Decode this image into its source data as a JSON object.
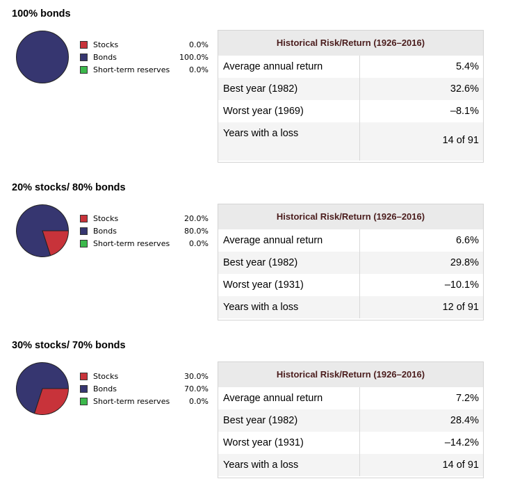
{
  "legend_colors": {
    "stocks": "#c8333a",
    "bonds": "#363670",
    "reserves": "#3cb84c"
  },
  "sections": [
    {
      "title": "100% bonds",
      "legend": [
        {
          "label": "Stocks",
          "value": "0.0%"
        },
        {
          "label": "Bonds",
          "value": "100.0%"
        },
        {
          "label": "Short-term reserves",
          "value": "0.0%"
        }
      ],
      "table": {
        "header": "Historical Risk/Return (1926–2016)",
        "rows": [
          {
            "label": "Average annual return",
            "value": "5.4%"
          },
          {
            "label": "Best year (1982)",
            "value": "32.6%"
          },
          {
            "label": "Worst year (1969)",
            "value": "–8.1%"
          },
          {
            "label": "Years with a loss",
            "value": "14 of 91"
          }
        ]
      }
    },
    {
      "title": "20% stocks/ 80% bonds",
      "legend": [
        {
          "label": "Stocks",
          "value": "20.0%"
        },
        {
          "label": "Bonds",
          "value": "80.0%"
        },
        {
          "label": "Short-term reserves",
          "value": "0.0%"
        }
      ],
      "table": {
        "header": "Historical Risk/Return (1926–2016)",
        "rows": [
          {
            "label": "Average annual return",
            "value": "6.6%"
          },
          {
            "label": "Best year (1982)",
            "value": "29.8%"
          },
          {
            "label": "Worst year (1931)",
            "value": "–10.1%"
          },
          {
            "label": "Years with a loss",
            "value": "12 of 91"
          }
        ]
      }
    },
    {
      "title": "30% stocks/ 70% bonds",
      "legend": [
        {
          "label": "Stocks",
          "value": "30.0%"
        },
        {
          "label": "Bonds",
          "value": "70.0%"
        },
        {
          "label": "Short-term reserves",
          "value": "0.0%"
        }
      ],
      "table": {
        "header": "Historical Risk/Return (1926–2016)",
        "rows": [
          {
            "label": "Average annual return",
            "value": "7.2%"
          },
          {
            "label": "Best year (1982)",
            "value": "28.4%"
          },
          {
            "label": "Worst year (1931)",
            "value": "–14.2%"
          },
          {
            "label": "Years with a loss",
            "value": "14 of 91"
          }
        ]
      }
    }
  ],
  "chart_data": [
    {
      "type": "pie",
      "categories": [
        "Stocks",
        "Bonds",
        "Short-term reserves"
      ],
      "values": [
        0,
        100,
        0
      ]
    },
    {
      "type": "pie",
      "categories": [
        "Stocks",
        "Bonds",
        "Short-term reserves"
      ],
      "values": [
        20,
        80,
        0
      ]
    },
    {
      "type": "pie",
      "categories": [
        "Stocks",
        "Bonds",
        "Short-term reserves"
      ],
      "values": [
        30,
        70,
        0
      ]
    }
  ]
}
